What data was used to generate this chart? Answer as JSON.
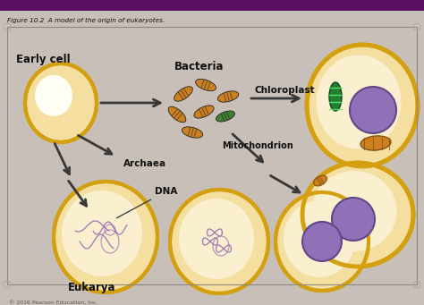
{
  "title": "Figure 10.2  A model of the origin of eukaryotes.",
  "copyright": "© 2016 Pearson Education, Inc.",
  "labels": {
    "early_cell": "Early cell",
    "bacteria": "Bacteria",
    "archaea": "Archaea",
    "chloroplast": "Chloroplast",
    "mitochondrion": "Mitochondrion",
    "dna": "DNA",
    "eukarya": "Eukarya"
  },
  "colors": {
    "bg_outer": "#c8c0b8",
    "bg_inner": "#e8e0d8",
    "top_bar": "#5a1060",
    "cell_fill": "#f5dfa0",
    "cell_fill_light": "#faf0d0",
    "cell_border": "#d4a010",
    "cell_inner": "#faecc8",
    "nucleus_fill": "#9070b8",
    "nucleus_border": "#604888",
    "bacteria_orange": "#cc8020",
    "bacteria_green": "#408030",
    "chloroplast_green": "#208840",
    "chloroplast_light": "#60c870",
    "arrow_color": "#383838",
    "text_color": "#101010",
    "dna_color": "#9060b0",
    "mito_fill": "#cc8020",
    "mito_border": "#885010",
    "border_box": "#888888",
    "white_inner": "#fffef5"
  },
  "fig_width": 4.74,
  "fig_height": 3.41,
  "dpi": 100
}
